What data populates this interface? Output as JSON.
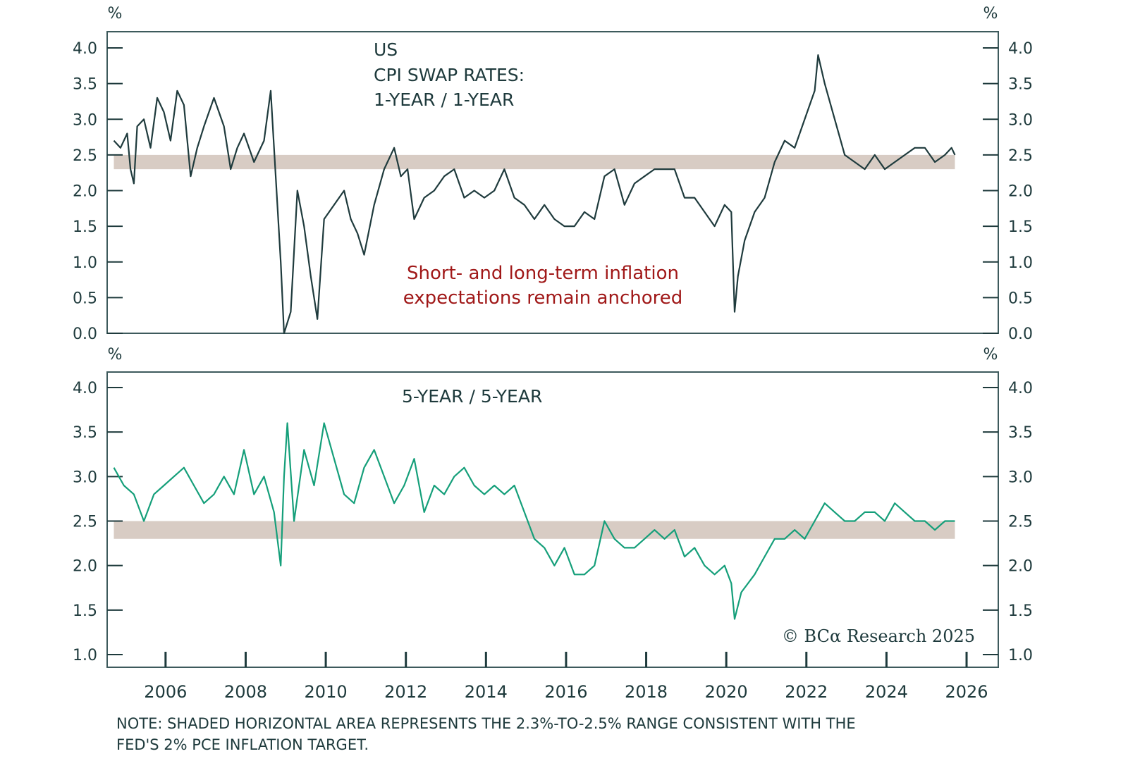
{
  "chart_data": [
    {
      "type": "line",
      "title": "US CPI SWAP RATES: 1-YEAR / 1-YEAR",
      "title_lines": [
        "US",
        "CPI SWAP RATES:",
        "1-YEAR / 1-YEAR"
      ],
      "ylabel": "%",
      "ylim": [
        0,
        4
      ],
      "yticks": [
        "0.0",
        "0.5",
        "1.0",
        "1.5",
        "2.0",
        "2.5",
        "3.0",
        "3.5",
        "4.0"
      ],
      "shaded_band": [
        2.3,
        2.5
      ],
      "annotation": [
        "Short- and long-term inflation",
        "expectations remain anchored"
      ],
      "color": "#1f3b3d",
      "band_color": "#d8ccc4",
      "annotation_color": "#a01818",
      "x": [
        "2004-09",
        "2004-11",
        "2005-01",
        "2005-02",
        "2005-03",
        "2005-04",
        "2005-06",
        "2005-08",
        "2005-10",
        "2005-12",
        "2006-02",
        "2006-04",
        "2006-06",
        "2006-08",
        "2006-10",
        "2006-12",
        "2007-03",
        "2007-06",
        "2007-08",
        "2007-10",
        "2007-12",
        "2008-03",
        "2008-06",
        "2008-08",
        "2008-09",
        "2008-11",
        "2008-12",
        "2009-02",
        "2009-04",
        "2009-06",
        "2009-08",
        "2009-10",
        "2009-12",
        "2010-03",
        "2010-06",
        "2010-08",
        "2010-10",
        "2010-12",
        "2011-03",
        "2011-06",
        "2011-09",
        "2011-11",
        "2012-01",
        "2012-03",
        "2012-06",
        "2012-09",
        "2012-12",
        "2013-03",
        "2013-06",
        "2013-09",
        "2013-12",
        "2014-03",
        "2014-06",
        "2014-09",
        "2014-12",
        "2015-03",
        "2015-06",
        "2015-09",
        "2015-12",
        "2016-03",
        "2016-06",
        "2016-09",
        "2016-12",
        "2017-03",
        "2017-06",
        "2017-09",
        "2017-12",
        "2018-03",
        "2018-06",
        "2018-09",
        "2018-12",
        "2019-03",
        "2019-06",
        "2019-09",
        "2019-12",
        "2020-02",
        "2020-03",
        "2020-04",
        "2020-06",
        "2020-09",
        "2020-12",
        "2021-03",
        "2021-06",
        "2021-09",
        "2021-12",
        "2022-03",
        "2022-04",
        "2022-06",
        "2022-09",
        "2022-12",
        "2023-03",
        "2023-06",
        "2023-09",
        "2023-12",
        "2024-03",
        "2024-06",
        "2024-09",
        "2024-12",
        "2025-03",
        "2025-06",
        "2025-08",
        "2025-09"
      ],
      "y": [
        2.7,
        2.6,
        2.8,
        2.3,
        2.1,
        2.9,
        3.0,
        2.6,
        3.3,
        3.1,
        2.7,
        3.4,
        3.2,
        2.2,
        2.6,
        2.9,
        3.3,
        2.9,
        2.3,
        2.6,
        2.8,
        2.4,
        2.7,
        3.4,
        2.6,
        1.0,
        0.0,
        0.3,
        2.0,
        1.5,
        0.8,
        0.2,
        1.6,
        1.8,
        2.0,
        1.6,
        1.4,
        1.1,
        1.8,
        2.3,
        2.6,
        2.2,
        2.3,
        1.6,
        1.9,
        2.0,
        2.2,
        2.3,
        1.9,
        2.0,
        1.9,
        2.0,
        2.3,
        1.9,
        1.8,
        1.6,
        1.8,
        1.6,
        1.5,
        1.5,
        1.7,
        1.6,
        2.2,
        2.3,
        1.8,
        2.1,
        2.2,
        2.3,
        2.3,
        2.3,
        1.9,
        1.9,
        1.7,
        1.5,
        1.8,
        1.7,
        0.3,
        0.8,
        1.3,
        1.7,
        1.9,
        2.4,
        2.7,
        2.6,
        3.0,
        3.4,
        3.9,
        3.5,
        3.0,
        2.5,
        2.4,
        2.3,
        2.5,
        2.3,
        2.4,
        2.5,
        2.6,
        2.6,
        2.4,
        2.5,
        2.6,
        2.5
      ]
    },
    {
      "type": "line",
      "title": "5-YEAR / 5-YEAR",
      "ylabel": "%",
      "ylim": [
        1,
        4
      ],
      "yticks": [
        "1.0",
        "1.5",
        "2.0",
        "2.5",
        "3.0",
        "3.5",
        "4.0"
      ],
      "shaded_band": [
        2.3,
        2.5
      ],
      "color": "#159f7a",
      "band_color": "#d8ccc4",
      "x": [
        "2004-09",
        "2004-12",
        "2005-03",
        "2005-06",
        "2005-09",
        "2005-12",
        "2006-03",
        "2006-06",
        "2006-09",
        "2006-12",
        "2007-03",
        "2007-06",
        "2007-09",
        "2007-12",
        "2008-03",
        "2008-06",
        "2008-09",
        "2008-11",
        "2008-12",
        "2009-01",
        "2009-03",
        "2009-06",
        "2009-09",
        "2009-12",
        "2010-03",
        "2010-06",
        "2010-09",
        "2010-12",
        "2011-03",
        "2011-06",
        "2011-09",
        "2011-12",
        "2012-03",
        "2012-06",
        "2012-09",
        "2012-12",
        "2013-03",
        "2013-06",
        "2013-09",
        "2013-12",
        "2014-03",
        "2014-06",
        "2014-09",
        "2014-12",
        "2015-03",
        "2015-06",
        "2015-09",
        "2015-12",
        "2016-03",
        "2016-06",
        "2016-09",
        "2016-12",
        "2017-03",
        "2017-06",
        "2017-09",
        "2017-12",
        "2018-03",
        "2018-06",
        "2018-09",
        "2018-12",
        "2019-03",
        "2019-06",
        "2019-09",
        "2019-12",
        "2020-02",
        "2020-03",
        "2020-05",
        "2020-09",
        "2020-12",
        "2021-03",
        "2021-06",
        "2021-09",
        "2021-12",
        "2022-03",
        "2022-06",
        "2022-09",
        "2022-12",
        "2023-03",
        "2023-06",
        "2023-09",
        "2023-12",
        "2024-03",
        "2024-06",
        "2024-09",
        "2024-12",
        "2025-03",
        "2025-06",
        "2025-09"
      ],
      "y": [
        3.1,
        2.9,
        2.8,
        2.5,
        2.8,
        2.9,
        3.0,
        3.1,
        2.9,
        2.7,
        2.8,
        3.0,
        2.8,
        3.3,
        2.8,
        3.0,
        2.6,
        2.0,
        3.0,
        3.6,
        2.5,
        3.3,
        2.9,
        3.6,
        3.2,
        2.8,
        2.7,
        3.1,
        3.3,
        3.0,
        2.7,
        2.9,
        3.2,
        2.6,
        2.9,
        2.8,
        3.0,
        3.1,
        2.9,
        2.8,
        2.9,
        2.8,
        2.9,
        2.6,
        2.3,
        2.2,
        2.0,
        2.2,
        1.9,
        1.9,
        2.0,
        2.5,
        2.3,
        2.2,
        2.2,
        2.3,
        2.4,
        2.3,
        2.4,
        2.1,
        2.2,
        2.0,
        1.9,
        2.0,
        1.8,
        1.4,
        1.7,
        1.9,
        2.1,
        2.3,
        2.3,
        2.4,
        2.3,
        2.5,
        2.7,
        2.6,
        2.5,
        2.5,
        2.6,
        2.6,
        2.5,
        2.7,
        2.6,
        2.5,
        2.5,
        2.4,
        2.5,
        2.5
      ]
    }
  ],
  "x_axis": {
    "ticks": [
      "2006",
      "2008",
      "2010",
      "2012",
      "2014",
      "2016",
      "2018",
      "2020",
      "2022",
      "2024",
      "2026"
    ],
    "range": [
      "2004-07",
      "2026-10"
    ]
  },
  "unit_label": "%",
  "copyright": "© BCα Research 2025",
  "note": [
    "NOTE: SHADED HORIZONTAL AREA REPRESENTS THE 2.3%-TO-2.5% RANGE CONSISTENT WITH THE",
    "FED'S 2% PCE INFLATION TARGET."
  ]
}
